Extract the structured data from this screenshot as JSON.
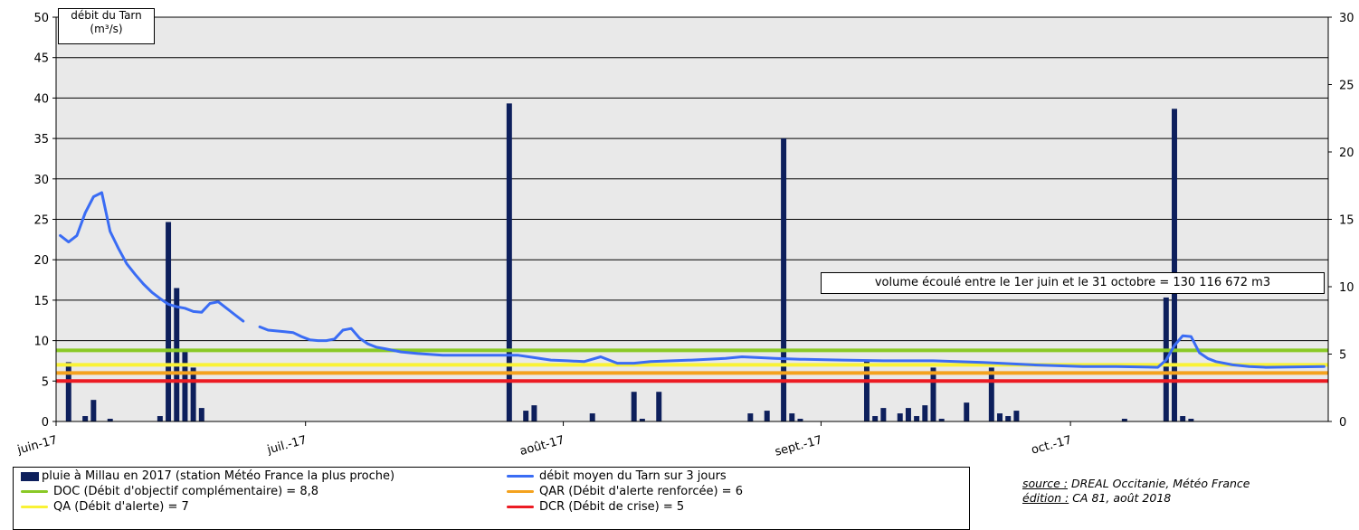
{
  "chart_data": {
    "type": "bar+line",
    "ylim": [
      0,
      50
    ],
    "y_ticks": [
      0,
      5,
      10,
      15,
      20,
      25,
      30,
      35,
      40,
      45,
      50
    ],
    "y2lim": [
      0,
      30
    ],
    "y2_ticks": [
      0,
      5,
      10,
      15,
      20,
      25,
      30
    ],
    "x_start": "2017-06-01",
    "x_end": "2017-10-31",
    "x_tick_labels": [
      {
        "date": "2017-06-01",
        "label": "juin-17"
      },
      {
        "date": "2017-07-01",
        "label": "juil.-17"
      },
      {
        "date": "2017-08-01",
        "label": "août-17"
      },
      {
        "date": "2017-09-01",
        "label": "sept.-17"
      },
      {
        "date": "2017-10-01",
        "label": "oct.-17"
      }
    ],
    "ylabel_box": [
      "débit du Tarn",
      "(m³/s)"
    ],
    "annotation": "volume écoulé entre le 1er juin et le 31 octobre = 130 116 672 m3",
    "grid": true,
    "series": [
      {
        "name": "pluie à Millau en 2017 (station Météo France la plus proche)",
        "kind": "bar",
        "axis": "right",
        "color": "#0d1f5c",
        "points": [
          [
            "2017-06-02",
            4.4
          ],
          [
            "2017-06-04",
            0.4
          ],
          [
            "2017-06-05",
            1.6
          ],
          [
            "2017-06-07",
            0.2
          ],
          [
            "2017-06-13",
            0.4
          ],
          [
            "2017-06-14",
            14.8
          ],
          [
            "2017-06-15",
            9.9
          ],
          [
            "2017-06-16",
            5.3
          ],
          [
            "2017-06-17",
            4.0
          ],
          [
            "2017-06-18",
            1.0
          ],
          [
            "2017-07-25",
            23.6
          ],
          [
            "2017-07-27",
            0.8
          ],
          [
            "2017-07-28",
            1.2
          ],
          [
            "2017-08-04",
            0.6
          ],
          [
            "2017-08-09",
            2.2
          ],
          [
            "2017-08-10",
            0.2
          ],
          [
            "2017-08-12",
            2.2
          ],
          [
            "2017-08-23",
            0.6
          ],
          [
            "2017-08-25",
            0.8
          ],
          [
            "2017-08-27",
            21.0
          ],
          [
            "2017-08-28",
            0.6
          ],
          [
            "2017-08-29",
            0.2
          ],
          [
            "2017-09-06",
            4.6
          ],
          [
            "2017-09-07",
            0.4
          ],
          [
            "2017-09-08",
            1.0
          ],
          [
            "2017-09-10",
            0.6
          ],
          [
            "2017-09-11",
            1.0
          ],
          [
            "2017-09-12",
            0.4
          ],
          [
            "2017-09-13",
            1.2
          ],
          [
            "2017-09-14",
            4.0
          ],
          [
            "2017-09-15",
            0.2
          ],
          [
            "2017-09-18",
            1.4
          ],
          [
            "2017-09-21",
            4.0
          ],
          [
            "2017-09-22",
            0.6
          ],
          [
            "2017-09-23",
            0.4
          ],
          [
            "2017-09-24",
            0.8
          ],
          [
            "2017-10-07",
            0.2
          ],
          [
            "2017-10-12",
            9.2
          ],
          [
            "2017-10-13",
            23.2
          ],
          [
            "2017-10-14",
            0.4
          ],
          [
            "2017-10-15",
            0.2
          ]
        ]
      },
      {
        "name": "débit moyen du Tarn sur 3 jours",
        "kind": "line",
        "axis": "left",
        "color": "#3a6cf4",
        "segments": [
          [
            [
              "2017-06-01",
              23.0
            ],
            [
              "2017-06-02",
              22.2
            ],
            [
              "2017-06-03",
              23.0
            ],
            [
              "2017-06-04",
              25.8
            ],
            [
              "2017-06-05",
              27.8
            ],
            [
              "2017-06-06",
              28.3
            ],
            [
              "2017-06-07",
              23.5
            ],
            [
              "2017-06-08",
              21.4
            ],
            [
              "2017-06-09",
              19.5
            ],
            [
              "2017-06-10",
              18.2
            ],
            [
              "2017-06-11",
              17.0
            ],
            [
              "2017-06-12",
              16.0
            ],
            [
              "2017-06-13",
              15.2
            ],
            [
              "2017-06-14",
              14.5
            ],
            [
              "2017-06-15",
              14.2
            ],
            [
              "2017-06-16",
              14.0
            ],
            [
              "2017-06-17",
              13.6
            ],
            [
              "2017-06-18",
              13.5
            ],
            [
              "2017-06-19",
              14.6
            ],
            [
              "2017-06-20",
              14.8
            ],
            [
              "2017-06-21",
              14.0
            ],
            [
              "2017-06-22",
              13.2
            ],
            [
              "2017-06-23",
              12.4
            ]
          ],
          [
            [
              "2017-06-25",
              11.7
            ],
            [
              "2017-06-26",
              11.3
            ],
            [
              "2017-06-27",
              11.2
            ],
            [
              "2017-06-28",
              11.1
            ],
            [
              "2017-06-29",
              11.0
            ],
            [
              "2017-06-30",
              10.5
            ],
            [
              "2017-07-01",
              10.1
            ],
            [
              "2017-07-02",
              10.0
            ],
            [
              "2017-07-03",
              10.0
            ],
            [
              "2017-07-04",
              10.2
            ],
            [
              "2017-07-05",
              11.3
            ],
            [
              "2017-07-06",
              11.5
            ],
            [
              "2017-07-07",
              10.3
            ],
            [
              "2017-07-08",
              9.6
            ],
            [
              "2017-07-09",
              9.2
            ],
            [
              "2017-07-10",
              9.0
            ],
            [
              "2017-07-12",
              8.6
            ],
            [
              "2017-07-14",
              8.4
            ],
            [
              "2017-07-17",
              8.2
            ],
            [
              "2017-07-20",
              8.2
            ],
            [
              "2017-07-26",
              8.2
            ],
            [
              "2017-07-28",
              7.9
            ],
            [
              "2017-07-30",
              7.6
            ],
            [
              "2017-08-01",
              7.5
            ],
            [
              "2017-08-03",
              7.4
            ],
            [
              "2017-08-05",
              8.0
            ],
            [
              "2017-08-07",
              7.2
            ],
            [
              "2017-08-09",
              7.2
            ],
            [
              "2017-08-11",
              7.4
            ],
            [
              "2017-08-16",
              7.6
            ],
            [
              "2017-08-20",
              7.8
            ],
            [
              "2017-08-22",
              8.0
            ],
            [
              "2017-08-26",
              7.8
            ],
            [
              "2017-08-29",
              7.7
            ],
            [
              "2017-09-03",
              7.6
            ],
            [
              "2017-09-08",
              7.5
            ],
            [
              "2017-09-14",
              7.5
            ],
            [
              "2017-09-20",
              7.3
            ],
            [
              "2017-09-26",
              7.0
            ],
            [
              "2017-10-02",
              6.8
            ],
            [
              "2017-10-06",
              6.8
            ],
            [
              "2017-10-11",
              6.7
            ],
            [
              "2017-10-12",
              7.6
            ],
            [
              "2017-10-13",
              9.4
            ],
            [
              "2017-10-14",
              10.6
            ],
            [
              "2017-10-15",
              10.5
            ],
            [
              "2017-10-16",
              8.5
            ],
            [
              "2017-10-17",
              7.8
            ],
            [
              "2017-10-18",
              7.4
            ],
            [
              "2017-10-20",
              7.0
            ],
            [
              "2017-10-22",
              6.8
            ],
            [
              "2017-10-24",
              6.7
            ],
            [
              "2017-10-31",
              6.8
            ]
          ]
        ]
      }
    ],
    "thresholds": [
      {
        "label": "DOC (Débit d'objectif complémentaire) = 8,8",
        "value": 8.8,
        "color": "#8ac926"
      },
      {
        "label": "QAR (Débit d'alerte renforcée) = 6",
        "value": 6,
        "color": "#f4a21e"
      },
      {
        "label": "QA (Débit d'alerte) = 7",
        "value": 7,
        "color": "#f9f235"
      },
      {
        "label": "DCR (Débit de crise) = 5",
        "value": 5,
        "color": "#ec1c24"
      }
    ]
  },
  "source_label": "source :",
  "source_text": " DREAL Occitanie, Météo France",
  "edition_label": "édition :",
  "edition_text": " CA 81, août 2018"
}
